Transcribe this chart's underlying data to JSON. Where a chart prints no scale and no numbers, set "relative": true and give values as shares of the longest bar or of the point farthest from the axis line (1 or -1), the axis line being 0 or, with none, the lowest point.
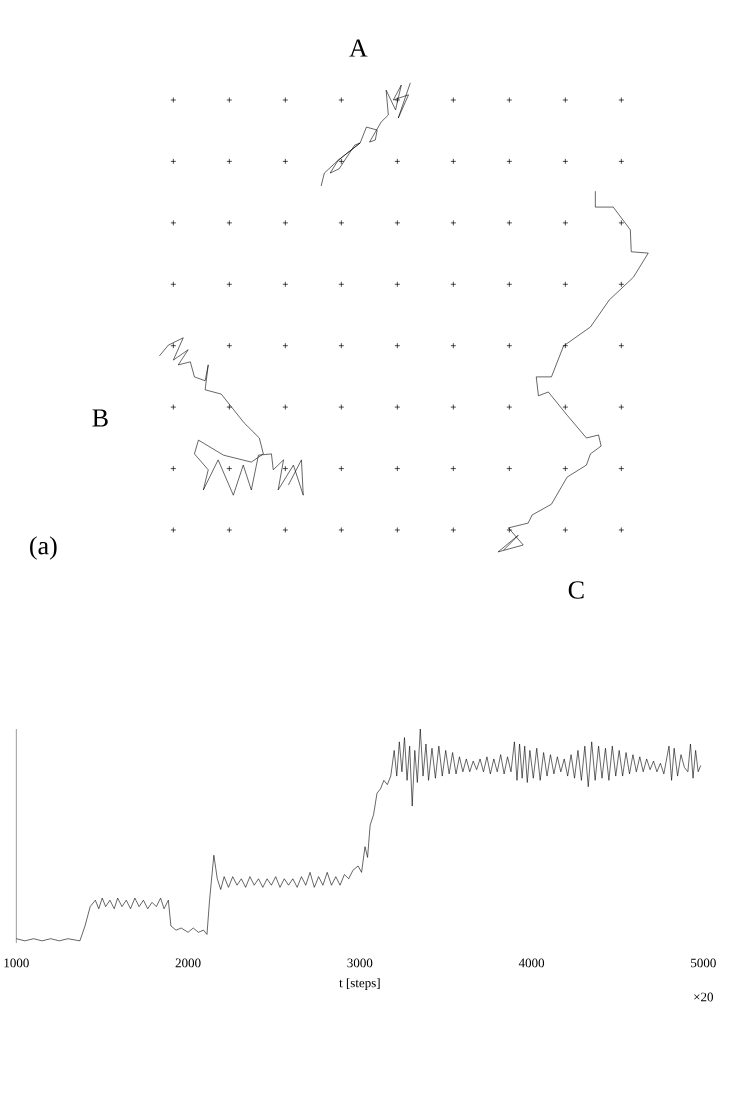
{
  "chart_data": [
    {
      "type": "other",
      "annotations": [
        "A",
        "B",
        "C",
        "(a)"
      ]
    },
    {
      "type": "line",
      "relative": true,
      "xlim": [
        1000,
        5000
      ],
      "xticks": [
        1000,
        2000,
        3000,
        4000,
        5000
      ],
      "xlabel": "t [steps]",
      "annotations": [
        "×20"
      ],
      "x": [
        1000,
        1050,
        1100,
        1150,
        1200,
        1250,
        1300,
        1370,
        1400,
        1430,
        1460,
        1480,
        1500,
        1520,
        1545,
        1570,
        1590,
        1615,
        1640,
        1665,
        1690,
        1715,
        1740,
        1765,
        1790,
        1815,
        1840,
        1860,
        1885,
        1900,
        1930,
        1960,
        2000,
        2030,
        2060,
        2090,
        2110,
        2125,
        2150,
        2170,
        2190,
        2210,
        2235,
        2260,
        2285,
        2310,
        2335,
        2360,
        2385,
        2410,
        2435,
        2460,
        2485,
        2510,
        2535,
        2560,
        2585,
        2610,
        2635,
        2660,
        2685,
        2710,
        2735,
        2760,
        2785,
        2810,
        2835,
        2860,
        2885,
        2910,
        2935,
        2960,
        2990,
        3010,
        3030,
        3045,
        3060,
        3080,
        3100,
        3120,
        3140,
        3160,
        3180,
        3200,
        3215,
        3230,
        3245,
        3260,
        3275,
        3290,
        3305,
        3320,
        3335,
        3352,
        3368,
        3385,
        3400,
        3420,
        3440,
        3460,
        3480,
        3500,
        3520,
        3540,
        3560,
        3580,
        3600,
        3620,
        3640,
        3660,
        3680,
        3700,
        3720,
        3740,
        3760,
        3780,
        3800,
        3820,
        3840,
        3860,
        3880,
        3900,
        3915,
        3930,
        3945,
        3960,
        3975,
        3990,
        4010,
        4030,
        4050,
        4070,
        4090,
        4110,
        4130,
        4150,
        4170,
        4190,
        4210,
        4230,
        4250,
        4270,
        4290,
        4310,
        4330,
        4350,
        4370,
        4390,
        4410,
        4430,
        4450,
        4470,
        4490,
        4510,
        4530,
        4550,
        4570,
        4590,
        4610,
        4630,
        4650,
        4670,
        4690,
        4710,
        4730,
        4750,
        4770,
        4800,
        4815,
        4830,
        4850,
        4870,
        4890,
        4910,
        4925,
        4940,
        4955,
        4970,
        4985
      ],
      "series": [
        {
          "color": "#000000",
          "values": [
            0.02,
            0.01,
            0.02,
            0.01,
            0.02,
            0.01,
            0.02,
            0.01,
            0.08,
            0.17,
            0.2,
            0.16,
            0.21,
            0.17,
            0.2,
            0.16,
            0.21,
            0.17,
            0.2,
            0.16,
            0.21,
            0.17,
            0.2,
            0.16,
            0.19,
            0.17,
            0.21,
            0.16,
            0.2,
            0.08,
            0.06,
            0.07,
            0.05,
            0.07,
            0.05,
            0.06,
            0.04,
            0.2,
            0.41,
            0.3,
            0.25,
            0.31,
            0.26,
            0.31,
            0.27,
            0.3,
            0.26,
            0.31,
            0.27,
            0.3,
            0.26,
            0.3,
            0.27,
            0.31,
            0.26,
            0.3,
            0.27,
            0.3,
            0.26,
            0.31,
            0.27,
            0.33,
            0.26,
            0.31,
            0.27,
            0.33,
            0.27,
            0.31,
            0.27,
            0.32,
            0.3,
            0.34,
            0.36,
            0.33,
            0.45,
            0.4,
            0.55,
            0.6,
            0.7,
            0.72,
            0.76,
            0.74,
            0.78,
            0.9,
            0.78,
            0.94,
            0.8,
            0.96,
            0.76,
            0.92,
            0.64,
            0.9,
            0.75,
            1.0,
            0.78,
            0.93,
            0.76,
            0.91,
            0.77,
            0.92,
            0.78,
            0.9,
            0.79,
            0.89,
            0.79,
            0.87,
            0.8,
            0.86,
            0.8,
            0.85,
            0.81,
            0.86,
            0.8,
            0.87,
            0.79,
            0.86,
            0.8,
            0.88,
            0.79,
            0.87,
            0.8,
            0.94,
            0.76,
            0.93,
            0.77,
            0.92,
            0.75,
            0.9,
            0.77,
            0.91,
            0.76,
            0.89,
            0.78,
            0.88,
            0.79,
            0.87,
            0.8,
            0.86,
            0.78,
            0.88,
            0.77,
            0.9,
            0.76,
            0.92,
            0.73,
            0.94,
            0.76,
            0.92,
            0.77,
            0.91,
            0.76,
            0.92,
            0.78,
            0.9,
            0.78,
            0.89,
            0.79,
            0.88,
            0.8,
            0.87,
            0.8,
            0.86,
            0.81,
            0.85,
            0.8,
            0.84,
            0.79,
            0.92,
            0.76,
            0.91,
            0.78,
            0.88,
            0.82,
            0.8,
            0.93,
            0.77,
            0.9,
            0.8,
            0.83
          ]
        }
      ]
    }
  ]
}
